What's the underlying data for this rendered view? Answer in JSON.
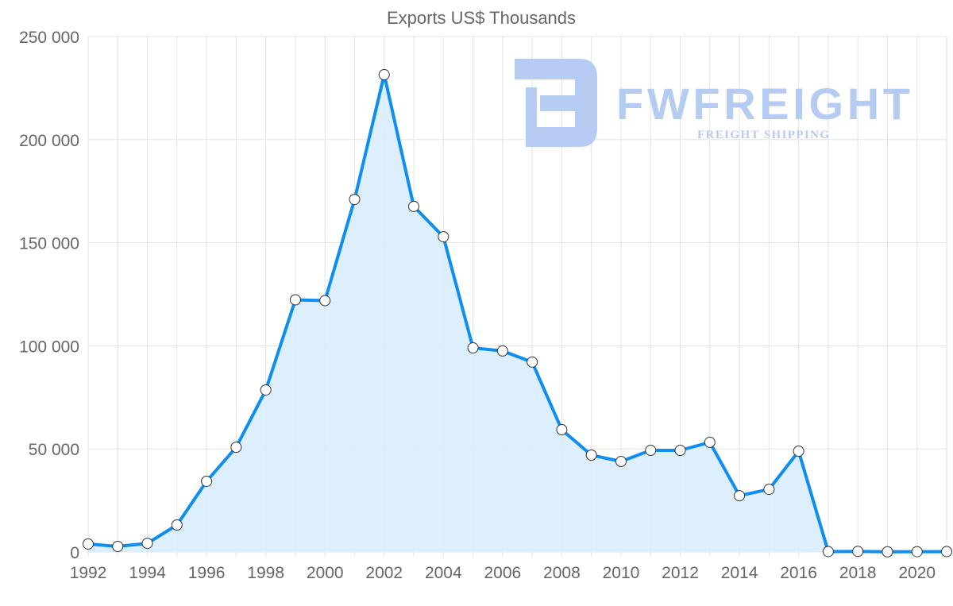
{
  "chart_data": {
    "type": "area",
    "title": "Exports US$ Thousands",
    "xlabel": "",
    "ylabel": "",
    "x": [
      1992,
      1993,
      1994,
      1995,
      1996,
      1997,
      1998,
      1999,
      2000,
      2001,
      2002,
      2003,
      2004,
      2005,
      2006,
      2007,
      2008,
      2009,
      2010,
      2011,
      2012,
      2013,
      2014,
      2015,
      2016,
      2017,
      2018,
      2019,
      2020,
      2021
    ],
    "series": [
      {
        "name": "Exports US$ Thousands",
        "values": [
          3900,
          2700,
          4200,
          13100,
          34300,
          50800,
          78600,
          122300,
          121900,
          171000,
          231500,
          167600,
          152900,
          99000,
          97500,
          92100,
          59300,
          47000,
          43900,
          49300,
          49300,
          53200,
          27300,
          30400,
          48900,
          200,
          300,
          100,
          150,
          200
        ]
      }
    ],
    "ylim": [
      0,
      250000
    ],
    "yticks": [
      "0",
      "50 000",
      "100 000",
      "150 000",
      "200 000",
      "250 000"
    ],
    "xticks": [
      "1992",
      "1994",
      "1996",
      "1998",
      "2000",
      "2002",
      "2004",
      "2006",
      "2008",
      "2010",
      "2012",
      "2014",
      "2016",
      "2018",
      "2020"
    ],
    "grid": true,
    "colors": {
      "line": "#0d8ef0",
      "fill": "#d9ecfc",
      "grid": "#e3e3e3",
      "logo": "#b3c9f2"
    },
    "watermark": {
      "brand": "FWFREIGHT",
      "tagline": "FREIGHT SHIPPING"
    }
  }
}
